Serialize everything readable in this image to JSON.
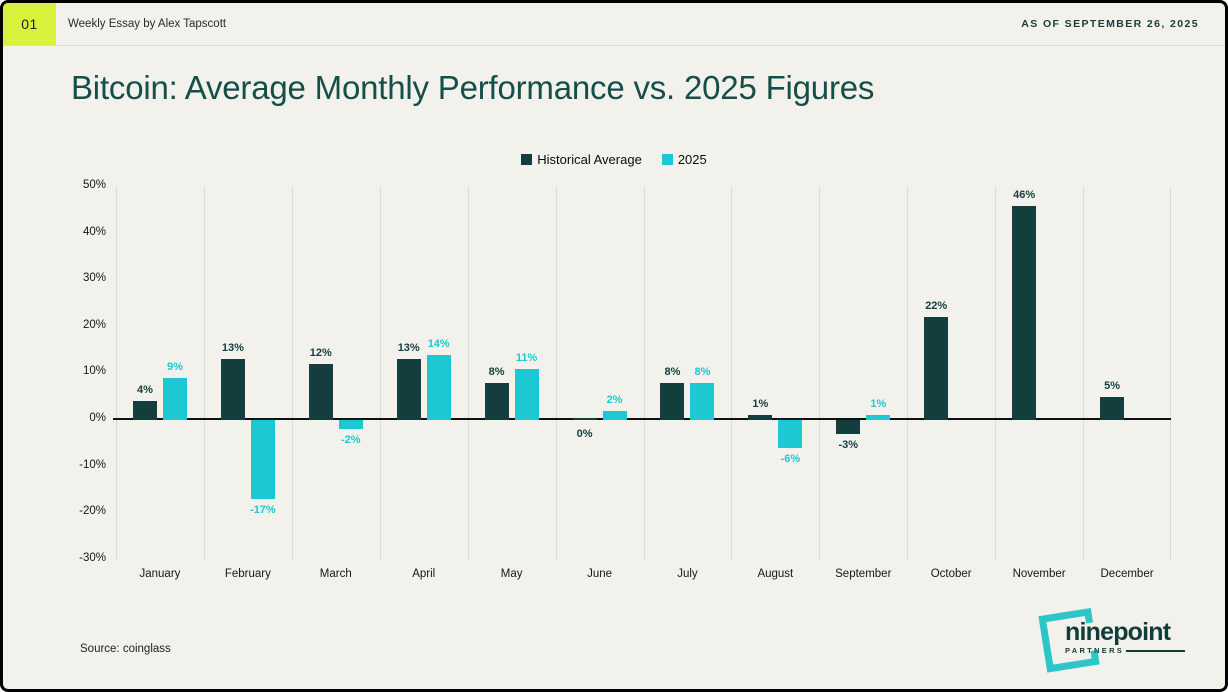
{
  "header": {
    "page_number": "01",
    "subtitle": "Weekly Essay by Alex Tapscott",
    "as_of": "AS OF SEPTEMBER 26, 2025"
  },
  "title": "Bitcoin: Average Monthly Performance vs. 2025 Figures",
  "chart_data": {
    "type": "bar",
    "title": "Bitcoin: Average Monthly Performance vs. 2025 Figures",
    "categories": [
      "January",
      "February",
      "March",
      "April",
      "May",
      "June",
      "July",
      "August",
      "September",
      "October",
      "November",
      "December"
    ],
    "series": [
      {
        "name": "Historical Average",
        "color": "#133e3d",
        "values": [
          4,
          13,
          12,
          13,
          8,
          0,
          8,
          1,
          -3,
          22,
          46,
          5
        ]
      },
      {
        "name": "2025",
        "color": "#1cc8d2",
        "values": [
          9,
          -17,
          -2,
          14,
          11,
          2,
          8,
          -6,
          1,
          null,
          null,
          null
        ]
      }
    ],
    "xlabel": "",
    "ylabel": "",
    "ylim": [
      -30,
      50
    ],
    "ytick_labels": [
      "50%",
      "40%",
      "30%",
      "20%",
      "10%",
      "0%",
      "-10%",
      "-20%",
      "-30%"
    ],
    "value_suffix": "%",
    "grid": "vertical-only",
    "legend_position": "top-center"
  },
  "footer": {
    "source": "Source: coinglass",
    "logo_word": "ninepoint",
    "logo_sub": "PARTNERS"
  },
  "colors": {
    "background": "#f2f1ec",
    "badge": "#d9f03c",
    "title_text": "#145049",
    "historical_bar": "#133e3d",
    "year2025_bar": "#1cc8d2",
    "logo_teal": "#2cc6c8"
  }
}
